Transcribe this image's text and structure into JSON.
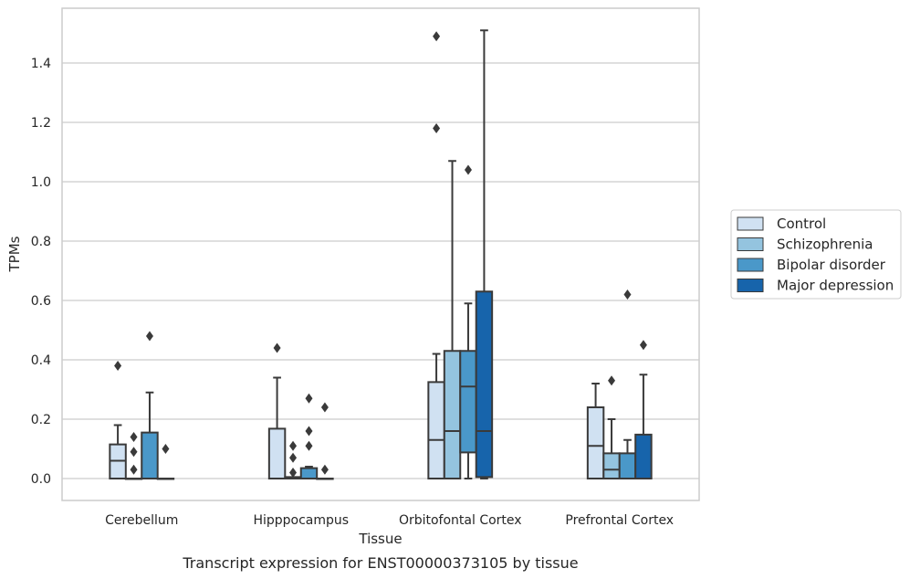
{
  "caption": "Transcript expression for ENST00000373105 by tissue",
  "chart_data": {
    "type": "box",
    "xlabel": "Tissue",
    "ylabel": "TPMs",
    "ylim": [
      -0.075,
      1.56
    ],
    "yticks": [
      0.0,
      0.2,
      0.4,
      0.6,
      0.8,
      1.0,
      1.2,
      1.4
    ],
    "ytick_labels": [
      "0.0",
      "0.2",
      "0.4",
      "0.6",
      "0.8",
      "1.0",
      "1.2",
      "1.4"
    ],
    "grid": "horizontal",
    "legend_position": "right",
    "categories": [
      "Cerebellum",
      "Hipppocampus",
      "Orbitofontal Cortex",
      "Prefrontal Cortex"
    ],
    "series": [
      {
        "name": "Control",
        "color": "#d0e1f2",
        "boxes": [
          {
            "whislo": 0.0,
            "q1": 0.0,
            "med": 0.06,
            "q3": 0.115,
            "whishi": 0.18,
            "fliers": [
              0.38
            ]
          },
          {
            "whislo": 0.0,
            "q1": 0.0,
            "med": 0.0,
            "q3": 0.168,
            "whishi": 0.34,
            "fliers": [
              0.44
            ]
          },
          {
            "whislo": 0.0,
            "q1": 0.0,
            "med": 0.13,
            "q3": 0.325,
            "whishi": 0.42,
            "fliers": [
              1.18,
              1.49
            ]
          },
          {
            "whislo": 0.0,
            "q1": 0.0,
            "med": 0.11,
            "q3": 0.24,
            "whishi": 0.32,
            "fliers": []
          }
        ]
      },
      {
        "name": "Schizophrenia",
        "color": "#94c4df",
        "boxes": [
          {
            "whislo": 0.0,
            "q1": 0.0,
            "med": 0.0,
            "q3": 0.0,
            "whishi": 0.0,
            "fliers": [
              0.03,
              0.09,
              0.14
            ]
          },
          {
            "whislo": 0.0,
            "q1": 0.0,
            "med": 0.0,
            "q3": 0.005,
            "whishi": 0.005,
            "fliers": [
              0.02,
              0.07,
              0.11
            ]
          },
          {
            "whislo": 0.0,
            "q1": 0.0,
            "med": 0.16,
            "q3": 0.43,
            "whishi": 1.07,
            "fliers": []
          },
          {
            "whislo": 0.0,
            "q1": 0.0,
            "med": 0.03,
            "q3": 0.085,
            "whishi": 0.2,
            "fliers": [
              0.33
            ]
          }
        ]
      },
      {
        "name": "Bipolar disorder",
        "color": "#4a98c9",
        "boxes": [
          {
            "whislo": 0.0,
            "q1": 0.0,
            "med": 0.0,
            "q3": 0.155,
            "whishi": 0.29,
            "fliers": [
              0.48
            ]
          },
          {
            "whislo": 0.0,
            "q1": 0.0,
            "med": 0.0,
            "q3": 0.035,
            "whishi": 0.04,
            "fliers": [
              0.11,
              0.16,
              0.27
            ]
          },
          {
            "whislo": 0.0,
            "q1": 0.088,
            "med": 0.31,
            "q3": 0.43,
            "whishi": 0.59,
            "fliers": [
              1.04
            ]
          },
          {
            "whislo": 0.0,
            "q1": 0.0,
            "med": 0.0,
            "q3": 0.085,
            "whishi": 0.13,
            "fliers": [
              0.62
            ]
          }
        ]
      },
      {
        "name": "Major depression",
        "color": "#1764ab",
        "boxes": [
          {
            "whislo": 0.0,
            "q1": 0.0,
            "med": 0.0,
            "q3": 0.0,
            "whishi": 0.0,
            "fliers": [
              0.1
            ]
          },
          {
            "whislo": 0.0,
            "q1": 0.0,
            "med": 0.0,
            "q3": 0.0,
            "whishi": 0.0,
            "fliers": [
              0.03,
              0.24
            ]
          },
          {
            "whislo": 0.0,
            "q1": 0.005,
            "med": 0.16,
            "q3": 0.63,
            "whishi": 1.51,
            "fliers": []
          },
          {
            "whislo": 0.0,
            "q1": 0.0,
            "med": 0.0,
            "q3": 0.148,
            "whishi": 0.35,
            "fliers": [
              0.45
            ]
          }
        ]
      }
    ]
  }
}
